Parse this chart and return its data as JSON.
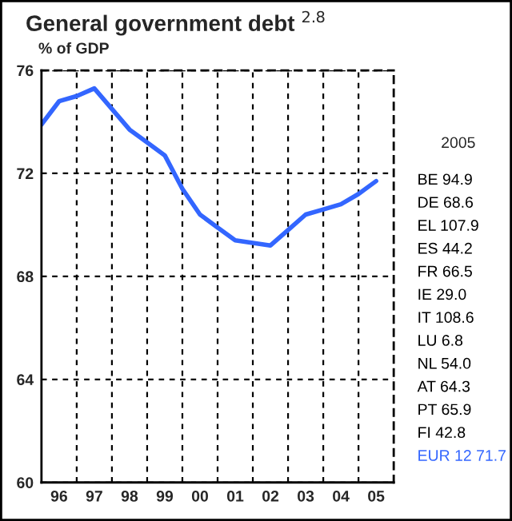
{
  "chart_data": {
    "type": "line",
    "title": "General government debt $^{2.8}$",
    "ylabel": "% of GDP",
    "categories": [
      null,
      "96",
      null,
      "97",
      null,
      "98",
      null,
      "99",
      null,
      "00",
      null,
      "01",
      null,
      "02",
      null,
      "03",
      null,
      "04",
      null,
      "05",
      null
    ],
    "series": [
      {
        "color": "#3366ff",
        "values": [
          73.9,
          74.8,
          75.0,
          75.3,
          74.5,
          73.7,
          73.2,
          72.7,
          71.4,
          70.4,
          69.9,
          69.4,
          69.3,
          69.2,
          69.8,
          70.4,
          70.6,
          70.8,
          71.2,
          71.7,
          null
        ]
      }
    ],
    "ylim": [
      60,
      76
    ],
    "yticks": [
      60,
      64,
      68,
      72,
      76
    ],
    "grid": true,
    "legend": false,
    "marker": "none",
    "line_style": "solid",
    "annotations": [
      "2005",
      "BE 94.9",
      "DE 68.6",
      "EL 107.9",
      "ES 44.2",
      "FR 66.5",
      "IE 29.0",
      "IT 108.6",
      "LU 6.8",
      "NL 54.0",
      "AT 64.3",
      "PT 65.9",
      "FI 42.8",
      "EUR 12 71.7"
    ]
  }
}
